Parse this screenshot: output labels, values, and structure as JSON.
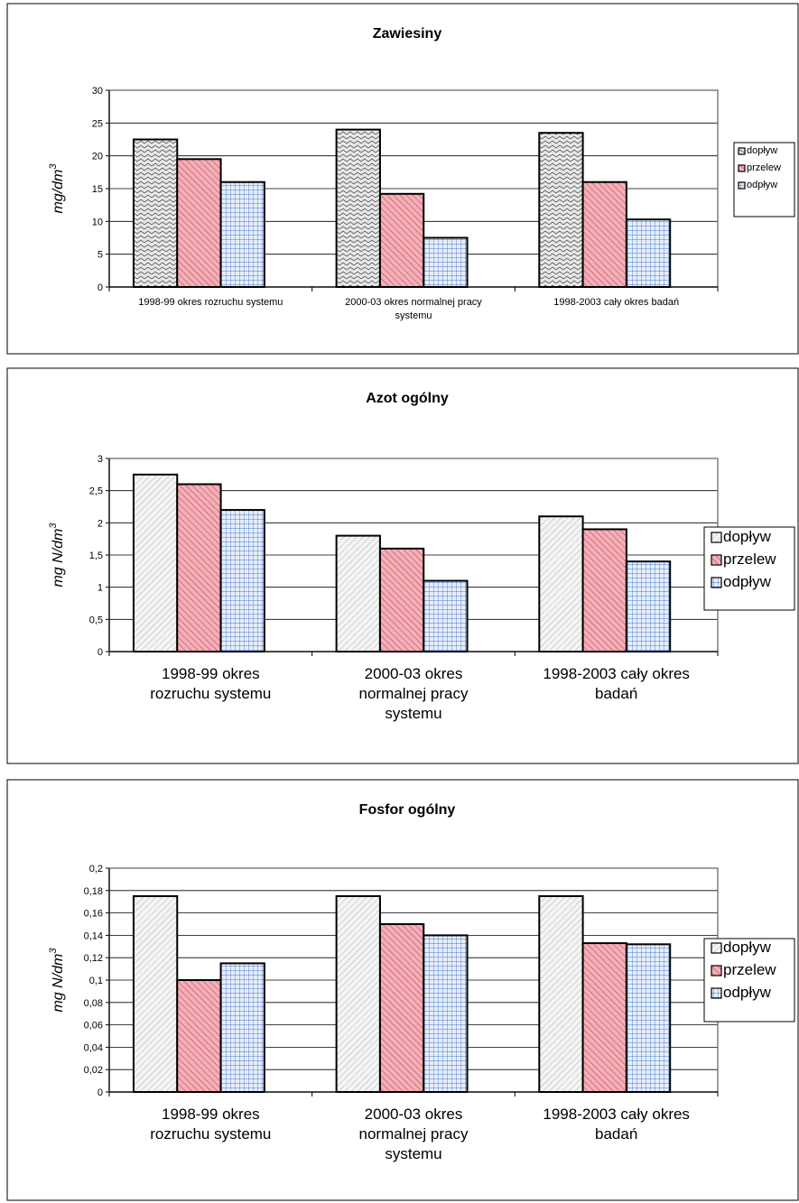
{
  "legend": [
    "dopływ",
    "przelew",
    "odpływ"
  ],
  "categories_main": [
    [
      "1998-99 okres rozruchu systemu"
    ],
    [
      "2000-03 okres normalnej pracy",
      "systemu"
    ],
    [
      "1998-2003 cały okres badań"
    ]
  ],
  "categories_wrapped": [
    [
      "1998-99 okres",
      "rozruchu systemu"
    ],
    [
      "2000-03 okres",
      "normalnej pracy",
      "systemu"
    ],
    [
      "1998-2003 cały okres",
      "badań"
    ]
  ],
  "chart_data": [
    {
      "type": "bar",
      "title": "Zawiesiny",
      "ylabel": "mg/dm",
      "ylabel_sup": "3",
      "ylim": [
        0,
        30
      ],
      "yticks": [
        "0",
        "5",
        "10",
        "15",
        "20",
        "25",
        "30"
      ],
      "categories": [
        "1998-99 okres rozruchu systemu",
        "2000-03 okres normalnej pracy systemu",
        "1998-2003 cały okres badań"
      ],
      "series": [
        {
          "name": "dopływ",
          "values": [
            22.5,
            24,
            23.5
          ]
        },
        {
          "name": "przelew",
          "values": [
            19.5,
            14.2,
            16
          ]
        },
        {
          "name": "odpływ",
          "values": [
            16,
            7.5,
            10.3
          ]
        }
      ],
      "legend_position": "right"
    },
    {
      "type": "bar",
      "title": "Azot ogólny",
      "ylabel": "mg N/dm",
      "ylabel_sup": "3",
      "ylim": [
        0,
        3
      ],
      "yticks": [
        "0",
        "0,5",
        "1",
        "1,5",
        "2",
        "2,5",
        "3"
      ],
      "categories": [
        "1998-99 okres rozruchu systemu",
        "2000-03 okres normalnej pracy systemu",
        "1998-2003 cały okres badań"
      ],
      "series": [
        {
          "name": "dopływ",
          "values": [
            2.75,
            1.8,
            2.1
          ]
        },
        {
          "name": "przelew",
          "values": [
            2.6,
            1.6,
            1.9
          ]
        },
        {
          "name": "odpływ",
          "values": [
            2.2,
            1.1,
            1.4
          ]
        }
      ],
      "legend_position": "right"
    },
    {
      "type": "bar",
      "title": "Fosfor ogólny",
      "ylabel": "mg N/dm",
      "ylabel_sup": "3",
      "ylim": [
        0,
        0.2
      ],
      "yticks": [
        "0",
        "0,02",
        "0,04",
        "0,06",
        "0,08",
        "0,1",
        "0,12",
        "0,14",
        "0,16",
        "0,18",
        "0,2"
      ],
      "categories": [
        "1998-99 okres rozruchu systemu",
        "2000-03 okres normalnej pracy systemu",
        "1998-2003 cały okres badań"
      ],
      "series": [
        {
          "name": "dopływ",
          "values": [
            0.175,
            0.175,
            0.175
          ]
        },
        {
          "name": "przelew",
          "values": [
            0.1,
            0.15,
            0.133
          ]
        },
        {
          "name": "odpływ",
          "values": [
            0.115,
            0.14,
            0.132
          ]
        }
      ],
      "legend_position": "right"
    }
  ],
  "colors": {
    "przelew_fill": "#f2a6ae",
    "przelew_stripe": "#c0485a",
    "odplyw_fill": "#cfe0f7",
    "odplyw_grid": "#3e6fc0",
    "doplyw_fill": "#f3f3f3",
    "doplyw_stripe": "#9a9a9a",
    "frame": "#000000",
    "plot_border": "#7b6b6b"
  }
}
